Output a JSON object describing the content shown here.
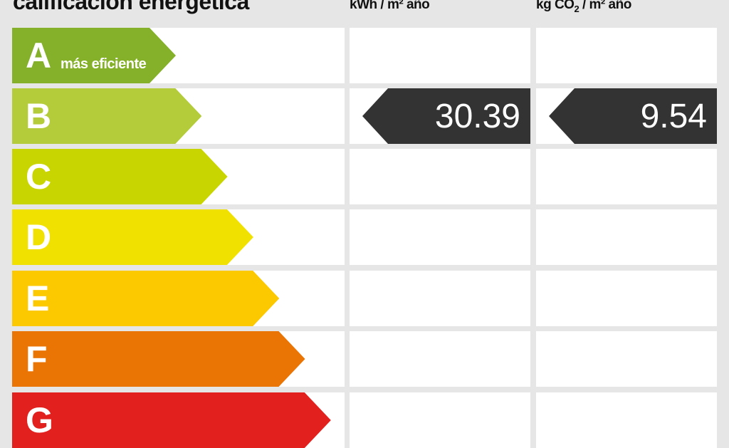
{
  "title": "calificación energética",
  "headers": {
    "energy": "kWh / m² año",
    "emissions_pre": "kg CO",
    "emissions_sub": "2",
    "emissions_post": " / m² año"
  },
  "ratings": [
    {
      "letter": "A",
      "label": "más eficiente",
      "color": "#84b02a"
    },
    {
      "letter": "B",
      "label": "",
      "color": "#b4cb3a"
    },
    {
      "letter": "C",
      "label": "",
      "color": "#c9d500"
    },
    {
      "letter": "D",
      "label": "",
      "color": "#f1e100"
    },
    {
      "letter": "E",
      "label": "",
      "color": "#fcc800"
    },
    {
      "letter": "F",
      "label": "",
      "color": "#ea7505"
    },
    {
      "letter": "G",
      "label": "",
      "color": "#e2211e"
    }
  ],
  "current": {
    "rating": "B",
    "energy_value": "30.39",
    "emissions_value": "9.54",
    "indicator_color": "#333333"
  }
}
